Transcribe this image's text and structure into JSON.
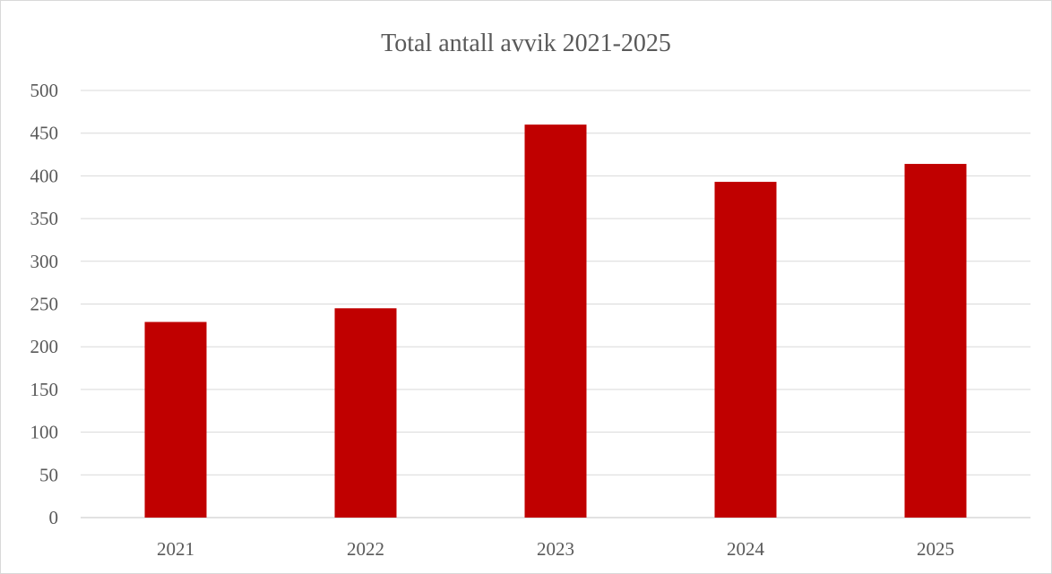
{
  "chart_data": {
    "type": "bar",
    "title": "Total antall avvik 2021-2025",
    "xlabel": "",
    "ylabel": "",
    "categories": [
      "2021",
      "2022",
      "2023",
      "2024",
      "2025"
    ],
    "values": [
      229,
      245,
      460,
      393,
      414
    ],
    "ylim": [
      0,
      500
    ],
    "yticks": [
      0,
      50,
      100,
      150,
      200,
      250,
      300,
      350,
      400,
      450,
      500
    ],
    "grid": true,
    "legend": "none",
    "colors": {
      "bar": "#C00000",
      "grid": "#D9D9D9",
      "text": "#595959"
    }
  }
}
